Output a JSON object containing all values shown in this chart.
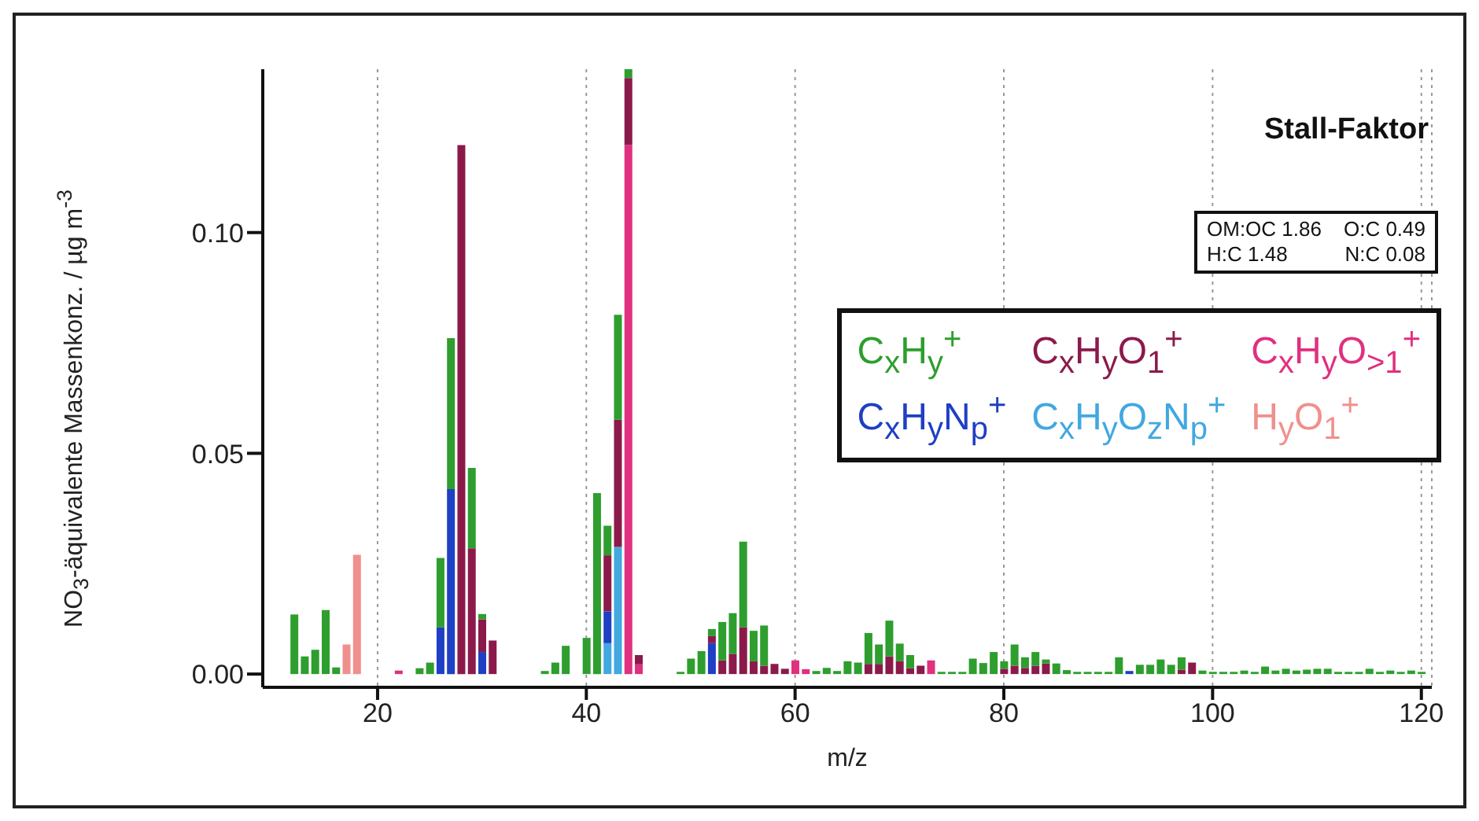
{
  "chart_data": {
    "type": "bar",
    "stacked": true,
    "title": "Stall-Faktor",
    "xlabel": "m/z",
    "ylabel": "NO$_{3}$-äquivalente Massenkonz. / µg m$^{-3}$",
    "annotations": [
      "OM:OC 1.86",
      "O:C 0.49",
      "H:C 1.48",
      "N:C 0.08"
    ],
    "xlim": [
      9,
      121
    ],
    "xticks": [
      20,
      40,
      60,
      80,
      100,
      120
    ],
    "ylim": [
      -0.003,
      0.137
    ],
    "yticks": [
      {
        "value": 0,
        "label": "0.00"
      },
      {
        "value": 0.05,
        "label": "0.05"
      },
      {
        "value": 0.1,
        "label": "0.10"
      }
    ],
    "grid": "x",
    "legend": "right",
    "x": [
      12,
      13,
      14,
      15,
      16,
      17,
      18,
      22,
      24,
      25,
      26,
      27,
      28,
      29,
      30,
      31,
      36,
      37,
      38,
      40,
      41,
      42,
      43,
      44,
      45,
      49,
      50,
      51,
      52,
      53,
      54,
      55,
      56,
      57,
      58,
      59,
      60,
      61,
      62,
      63,
      64,
      65,
      66,
      67,
      68,
      69,
      70,
      71,
      72,
      73,
      74,
      75,
      76,
      77,
      78,
      79,
      80,
      81,
      82,
      83,
      84,
      85,
      86,
      87,
      88,
      89,
      90,
      91,
      92,
      93,
      94,
      95,
      96,
      97,
      98,
      99,
      100,
      101,
      102,
      103,
      104,
      105,
      106,
      107,
      108,
      109,
      110,
      111,
      112,
      113,
      114,
      115,
      116,
      117,
      118,
      119,
      120
    ],
    "series": [
      {
        "name": "H$_{y}$O$_{1}$$^{+}$",
        "color": "#f0908c",
        "values": [
          null,
          null,
          null,
          null,
          null,
          0.0067,
          0.027,
          null,
          null,
          null,
          null,
          null,
          null,
          null,
          null,
          null,
          null,
          null,
          null,
          null,
          null,
          null,
          null,
          null,
          null,
          null,
          null,
          null,
          null,
          null,
          null,
          null,
          null,
          null,
          null,
          null,
          null,
          null,
          null,
          null,
          null,
          null,
          null,
          null,
          null,
          null,
          null,
          null,
          null,
          null,
          null,
          null,
          null,
          null,
          null,
          null,
          null,
          null,
          null,
          null,
          null,
          null,
          null,
          null,
          null,
          null,
          null,
          null,
          null,
          null,
          null,
          null,
          null,
          null,
          null,
          null,
          null,
          null,
          null,
          null,
          null,
          null,
          null,
          null,
          null,
          null,
          null,
          null,
          null,
          null,
          null,
          null,
          null,
          null,
          null,
          null,
          null
        ]
      },
      {
        "name": "C$_{x}$H$_{y}$O$_{z}$N$_{p}$$^{+}$",
        "color": "#41a8e0",
        "values": [
          null,
          null,
          null,
          null,
          null,
          null,
          null,
          null,
          null,
          null,
          null,
          null,
          null,
          null,
          null,
          null,
          null,
          null,
          null,
          null,
          null,
          0.007,
          0.0288,
          null,
          null,
          null,
          null,
          null,
          null,
          null,
          null,
          null,
          null,
          null,
          null,
          null,
          null,
          null,
          null,
          null,
          null,
          null,
          null,
          null,
          null,
          null,
          null,
          null,
          null,
          null,
          null,
          null,
          null,
          null,
          null,
          null,
          null,
          null,
          null,
          null,
          null,
          null,
          null,
          null,
          null,
          null,
          null,
          null,
          null,
          null,
          null,
          null,
          null,
          null,
          null,
          null,
          null,
          null,
          null,
          null,
          null,
          null,
          null,
          null,
          null,
          null,
          null,
          null,
          null,
          null,
          null,
          null,
          null,
          null,
          null,
          null,
          null
        ]
      },
      {
        "name": "C$_{x}$H$_{y}$N$_{p}$$^{+}$",
        "color": "#1f3fc4",
        "values": [
          null,
          null,
          null,
          null,
          null,
          null,
          null,
          null,
          null,
          null,
          0.0106,
          0.0419,
          null,
          null,
          0.005,
          null,
          null,
          null,
          null,
          null,
          null,
          0.0072,
          null,
          null,
          null,
          null,
          null,
          null,
          0.007,
          null,
          null,
          null,
          null,
          null,
          null,
          null,
          null,
          null,
          null,
          null,
          null,
          null,
          null,
          null,
          null,
          null,
          null,
          null,
          null,
          null,
          null,
          null,
          null,
          null,
          null,
          null,
          null,
          null,
          null,
          null,
          null,
          null,
          null,
          null,
          null,
          null,
          null,
          null,
          0.0007,
          null,
          null,
          null,
          null,
          null,
          null,
          null,
          null,
          null,
          null,
          null,
          null,
          null,
          null,
          null,
          null,
          null,
          null,
          null,
          null,
          null,
          null,
          null,
          null,
          null,
          null,
          null,
          null
        ]
      },
      {
        "name": "C$_{x}$H$_{y}$O$_{>1}$$^{+}$",
        "color": "#e0307f",
        "values": [
          null,
          null,
          null,
          null,
          null,
          null,
          null,
          0.0008,
          null,
          null,
          null,
          null,
          null,
          null,
          null,
          null,
          null,
          null,
          null,
          null,
          null,
          null,
          null,
          0.1198,
          0.0022,
          null,
          null,
          null,
          null,
          null,
          null,
          null,
          null,
          null,
          null,
          null,
          0.0031,
          0.0011,
          null,
          null,
          null,
          null,
          null,
          null,
          null,
          null,
          null,
          null,
          null,
          0.0031,
          null,
          null,
          null,
          null,
          null,
          null,
          null,
          null,
          null,
          null,
          null,
          null,
          null,
          null,
          null,
          null,
          null,
          null,
          null,
          null,
          null,
          null,
          null,
          null,
          null,
          null,
          null,
          null,
          null,
          null,
          null,
          null,
          null,
          null,
          null,
          null,
          null,
          null,
          null,
          null,
          null,
          null,
          null,
          null,
          null,
          null,
          null
        ]
      },
      {
        "name": "C$_{x}$H$_{y}$O$_{1}$$^{+}$",
        "color": "#8b1a4b",
        "values": [
          null,
          null,
          null,
          null,
          null,
          null,
          null,
          null,
          null,
          null,
          null,
          null,
          0.1198,
          0.0285,
          0.0074,
          0.0076,
          null,
          null,
          null,
          null,
          null,
          0.0127,
          0.0288,
          0.0152,
          0.0021,
          null,
          null,
          null,
          0.0016,
          0.0031,
          0.0046,
          0.0106,
          0.0029,
          0.0019,
          0.0023,
          0.0012,
          null,
          null,
          null,
          null,
          null,
          null,
          null,
          0.0023,
          0.0023,
          0.004,
          0.0029,
          0.0013,
          0.0019,
          null,
          null,
          null,
          null,
          null,
          null,
          null,
          0.0012,
          0.0019,
          0.0014,
          0.0019,
          0.0024,
          null,
          null,
          null,
          null,
          null,
          null,
          null,
          null,
          null,
          null,
          null,
          null,
          0.001,
          0.0026,
          null,
          null,
          null,
          null,
          null,
          null,
          null,
          null,
          null,
          null,
          null,
          null,
          null,
          null,
          null,
          null,
          null,
          null,
          null,
          null,
          null,
          null
        ]
      },
      {
        "name": "C$_{x}$H$_{y}$$^{+}$",
        "color": "#2e9e2e",
        "values": [
          0.0135,
          0.004,
          0.0055,
          0.0145,
          0.0015,
          null,
          null,
          null,
          0.0013,
          0.0026,
          0.0157,
          0.0342,
          null,
          0.0182,
          0.0012,
          null,
          0.0007,
          0.0026,
          0.0064,
          0.0082,
          0.041,
          0.0067,
          0.0238,
          0.0021,
          null,
          0.0005,
          0.0035,
          0.0052,
          0.0016,
          0.0087,
          0.0092,
          0.0194,
          0.0069,
          0.0091,
          null,
          null,
          null,
          null,
          0.0007,
          0.0014,
          0.0007,
          0.0029,
          0.0026,
          0.007,
          0.0044,
          0.0081,
          0.004,
          0.003,
          null,
          null,
          0.0005,
          0.0005,
          0.0005,
          0.0035,
          0.0025,
          0.005,
          0.0017,
          0.0048,
          0.0024,
          0.0031,
          0.0009,
          0.0024,
          0.0009,
          0.0005,
          0.0005,
          0.0005,
          0.0005,
          0.0038,
          null,
          0.0021,
          0.0021,
          0.0033,
          0.0021,
          0.0028,
          null,
          0.0008,
          0.0005,
          0.0005,
          0.0005,
          0.0008,
          0.0005,
          0.0017,
          0.0008,
          0.0012,
          0.0008,
          0.001,
          0.0012,
          0.0012,
          0.0005,
          0.0005,
          0.0005,
          0.0012,
          0.0005,
          0.0008,
          0.0005,
          0.0008,
          0.0005
        ]
      }
    ]
  }
}
